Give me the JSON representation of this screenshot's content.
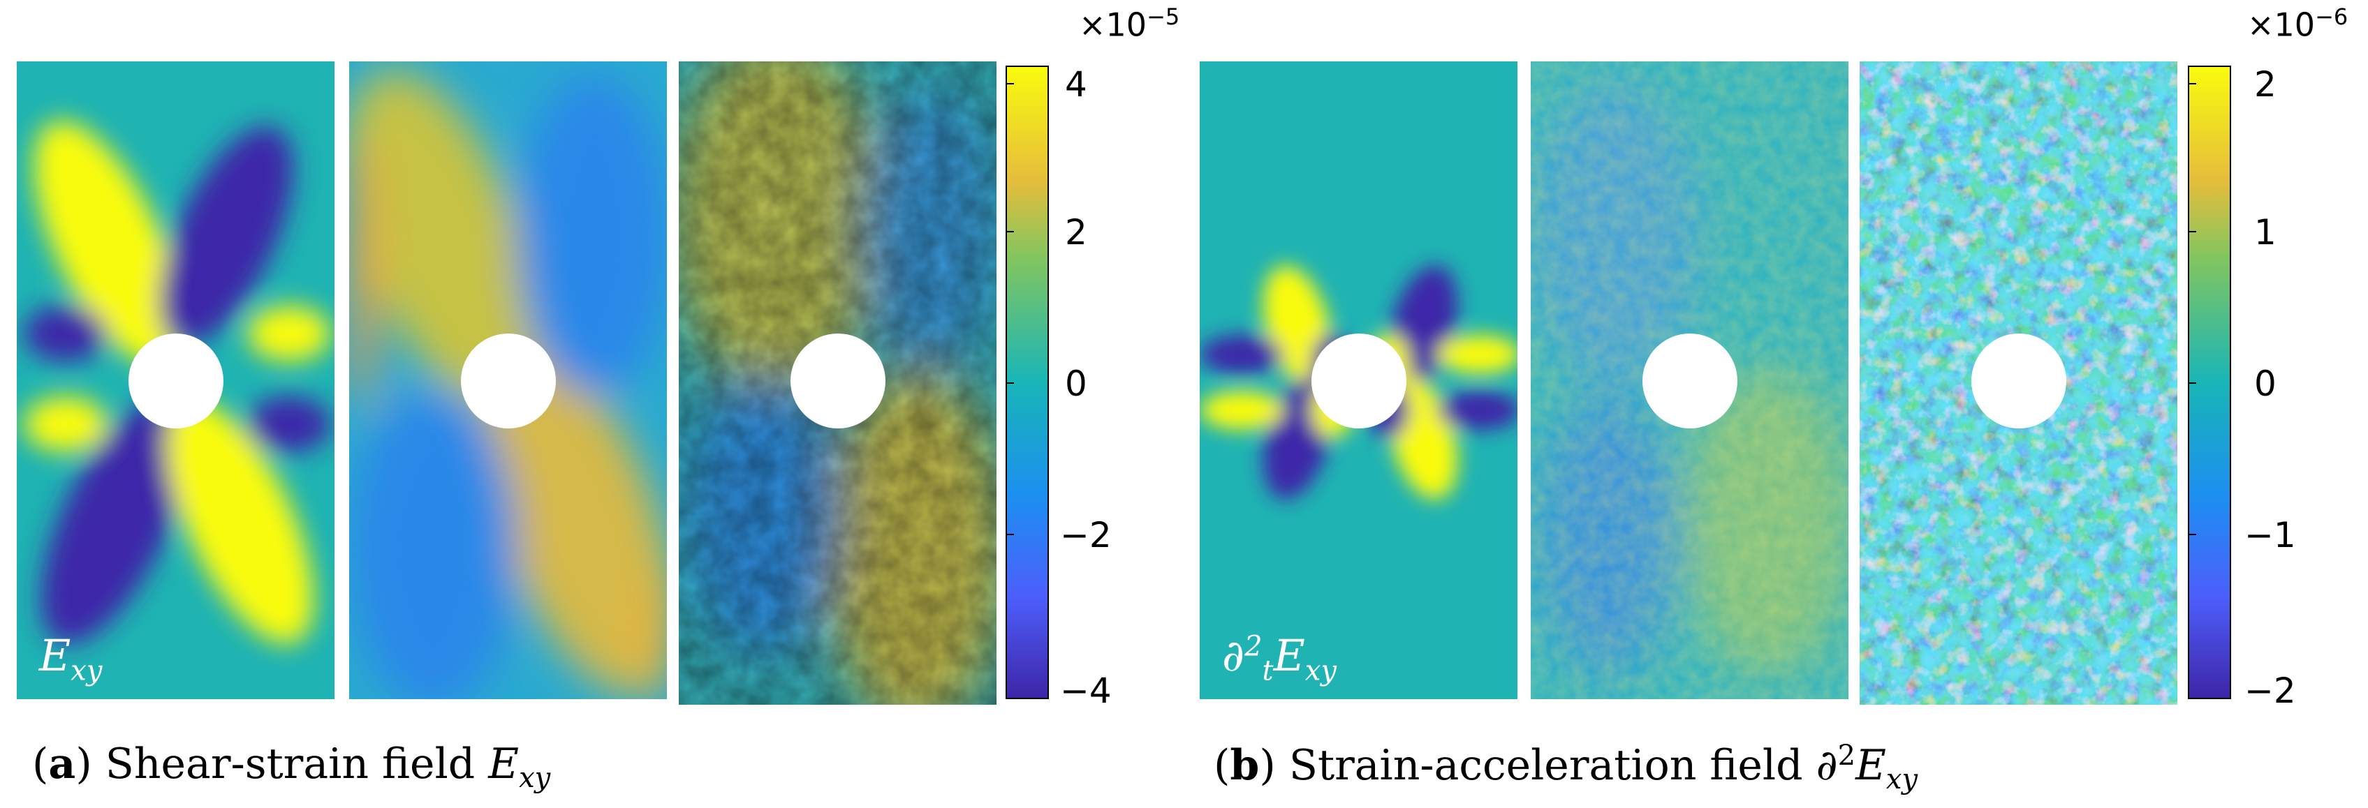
{
  "panel_a": {
    "field_symbol": "E",
    "field_subscript": "xy",
    "colorbar": {
      "exponent_base": "×10",
      "exponent_power": "−5",
      "ticks": [
        "4",
        "2",
        "0",
        "−2",
        "−4"
      ],
      "range": [
        -4,
        4
      ]
    },
    "caption": {
      "letter": "a",
      "text": "Shear-strain field",
      "symbol": "E",
      "subscript": "xy"
    }
  },
  "panel_b": {
    "field_symbol_prefix": "∂",
    "field_sup": "2",
    "field_sub": "t",
    "field_symbol": "E",
    "field_subscript": "xy",
    "colorbar": {
      "exponent_base": "×10",
      "exponent_power": "−6",
      "ticks": [
        "2",
        "1",
        "0",
        "−1",
        "−2"
      ],
      "range": [
        -2,
        2
      ]
    },
    "caption": {
      "letter": "b",
      "text": "Strain-acceleration field",
      "prefix": "∂",
      "sup": "2",
      "symbol": "E",
      "subscript": "xy"
    }
  },
  "colors": {
    "high": "#f9fb0e",
    "mid": "#19b5b7",
    "low": "#3e26a8"
  }
}
